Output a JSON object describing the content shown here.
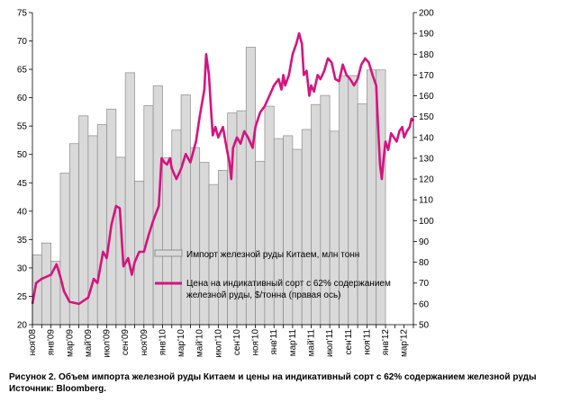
{
  "chart_data": {
    "type": "bar+line",
    "x_labels": [
      "ноя'08",
      "янв'09",
      "мар'09",
      "май'09",
      "июл'09",
      "сен'09",
      "ноя'09",
      "янв'10",
      "мар'10",
      "май'10",
      "июл'10",
      "сен'10",
      "ноя'10",
      "янв'11",
      "мар'11",
      "май'11",
      "июл'11",
      "сен'11",
      "ноя'11",
      "янв'12",
      "мар'12"
    ],
    "x_range_months": [
      0,
      41
    ],
    "left_axis": {
      "min": 20,
      "max": 75,
      "step": 5
    },
    "right_axis": {
      "min": 50,
      "max": 200,
      "step": 10
    },
    "bar_series": {
      "name": "Импорт железной руды Китаем, млн тонн",
      "axis": "left",
      "color": "#d9d9d9",
      "values": [
        32.3,
        34.4,
        31.2,
        46.7,
        51.9,
        56.8,
        53.3,
        55.3,
        58.0,
        49.5,
        64.4,
        45.3,
        58.6,
        62.1,
        49.4,
        54.3,
        60.5,
        51.2,
        48.6,
        44.7,
        47.2,
        57.3,
        57.7,
        68.9,
        48.8,
        58.5,
        52.8,
        53.3,
        50.9,
        54.4,
        58.8,
        60.4,
        54.1,
        63.9,
        63.9,
        58.9,
        64.9,
        64.9
      ]
    },
    "line_series": {
      "name": "Цена на индикативный сорт с 62% содержанием железной руды, $/тонна (правая ось)",
      "axis": "right",
      "color": "#d6137f",
      "points": [
        [
          0,
          60
        ],
        [
          0.4,
          70
        ],
        [
          1,
          72
        ],
        [
          2,
          74
        ],
        [
          2.6,
          79
        ],
        [
          3,
          73
        ],
        [
          3.4,
          66
        ],
        [
          4,
          61
        ],
        [
          5,
          60
        ],
        [
          6,
          63
        ],
        [
          6.6,
          72
        ],
        [
          7,
          70
        ],
        [
          7.6,
          85
        ],
        [
          8,
          82
        ],
        [
          8.5,
          98
        ],
        [
          9,
          107
        ],
        [
          9.4,
          106
        ],
        [
          9.8,
          78
        ],
        [
          10.3,
          82
        ],
        [
          10.7,
          74
        ],
        [
          11,
          80
        ],
        [
          11.5,
          85
        ],
        [
          12,
          85
        ],
        [
          12.5,
          93
        ],
        [
          13,
          100
        ],
        [
          13.6,
          107
        ],
        [
          13.9,
          130
        ],
        [
          14.2,
          128
        ],
        [
          14.5,
          127
        ],
        [
          14.8,
          130
        ],
        [
          15,
          125
        ],
        [
          15.5,
          120
        ],
        [
          16,
          125
        ],
        [
          16.5,
          132
        ],
        [
          17,
          128
        ],
        [
          17.6,
          138
        ],
        [
          18,
          150
        ],
        [
          18.5,
          163
        ],
        [
          18.7,
          180
        ],
        [
          19,
          170
        ],
        [
          19.2,
          155
        ],
        [
          19.4,
          141
        ],
        [
          19.7,
          145
        ],
        [
          20,
          140
        ],
        [
          20.5,
          145
        ],
        [
          20.9,
          135
        ],
        [
          21.2,
          128
        ],
        [
          21.4,
          120
        ],
        [
          21.6,
          135
        ],
        [
          22,
          140
        ],
        [
          22.4,
          137
        ],
        [
          22.8,
          143
        ],
        [
          23.2,
          140
        ],
        [
          23.7,
          135
        ],
        [
          24,
          145
        ],
        [
          24.5,
          152
        ],
        [
          25,
          155
        ],
        [
          25.5,
          160
        ],
        [
          26,
          165
        ],
        [
          26.5,
          168
        ],
        [
          26.8,
          163
        ],
        [
          27,
          170
        ],
        [
          27.2,
          165
        ],
        [
          27.6,
          170
        ],
        [
          28,
          180
        ],
        [
          28.4,
          185
        ],
        [
          28.7,
          190
        ],
        [
          29,
          185
        ],
        [
          29.2,
          170
        ],
        [
          29.5,
          172
        ],
        [
          29.8,
          160
        ],
        [
          30,
          165
        ],
        [
          30.3,
          162
        ],
        [
          30.7,
          170
        ],
        [
          31,
          168
        ],
        [
          31.4,
          172
        ],
        [
          31.8,
          178
        ],
        [
          32.2,
          176
        ],
        [
          32.6,
          168
        ],
        [
          33,
          167
        ],
        [
          33.4,
          175
        ],
        [
          33.8,
          170
        ],
        [
          34.2,
          168
        ],
        [
          34.6,
          165
        ],
        [
          35,
          168
        ],
        [
          35.4,
          175
        ],
        [
          35.8,
          178
        ],
        [
          36.2,
          176
        ],
        [
          36.6,
          170
        ],
        [
          37,
          165
        ],
        [
          37.2,
          145
        ],
        [
          37.4,
          127
        ],
        [
          37.6,
          120
        ],
        [
          37.8,
          130
        ],
        [
          38,
          138
        ],
        [
          38.3,
          134
        ],
        [
          38.6,
          142
        ],
        [
          38.9,
          140
        ],
        [
          39.2,
          138
        ],
        [
          39.5,
          143
        ],
        [
          39.8,
          145
        ],
        [
          40,
          140
        ],
        [
          40.3,
          143
        ],
        [
          40.6,
          145
        ],
        [
          40.8,
          149
        ],
        [
          41,
          148
        ]
      ]
    },
    "legend": [
      {
        "label": "Импорт железной руды Китаем, млн тонн",
        "swatch": "bar"
      },
      {
        "label_line1": "Цена на индикативный сорт с 62% содержанием",
        "label_line2": "железной руды, $/тонна (правая ось)",
        "swatch": "line"
      }
    ],
    "grid": false
  },
  "caption": {
    "line1": "Рисунок 2. Объем импорта  железной руды  Китаем и цены на индикативный  сорт с 62% содержанием железной руды",
    "line2": "Источник: Bloomberg."
  }
}
